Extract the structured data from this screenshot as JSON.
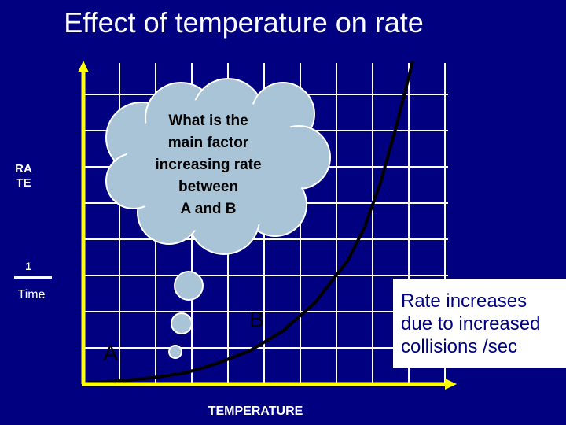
{
  "title": "Effect of temperature on rate",
  "y_axis": {
    "label": "RATE",
    "fraction_numerator": "1",
    "fraction_denominator": "Time"
  },
  "x_axis": {
    "label": "TEMPERATURE"
  },
  "thought_bubble": {
    "lines": [
      "What is the",
      "main factor",
      "increasing rate",
      "between",
      "A and B"
    ]
  },
  "callout": {
    "lines": [
      "Rate increases",
      "due to increased",
      "collisions /sec"
    ]
  },
  "colors": {
    "background": "#000080",
    "grid": "#ffffff",
    "axes": "#ffff00",
    "curve": "#000000",
    "cloud": "#a8c4d6"
  },
  "chart_data": {
    "type": "line",
    "title": "Effect of temperature on rate",
    "xlabel": "TEMPERATURE",
    "ylabel": "RATE (1/Time)",
    "grid": true,
    "series": [
      {
        "x": [
          0,
          0.1,
          0.2,
          0.3,
          0.4,
          0.5,
          0.6,
          0.7,
          0.8,
          0.85,
          0.9,
          0.95,
          1.0
        ],
        "y": [
          0,
          0.005,
          0.015,
          0.03,
          0.06,
          0.1,
          0.16,
          0.25,
          0.38,
          0.48,
          0.62,
          0.8,
          1.0
        ]
      }
    ],
    "points": [
      {
        "label": "A",
        "x": 0.05,
        "y": 0.02
      },
      {
        "label": "B",
        "x": 0.5,
        "y": 0.13
      }
    ]
  }
}
